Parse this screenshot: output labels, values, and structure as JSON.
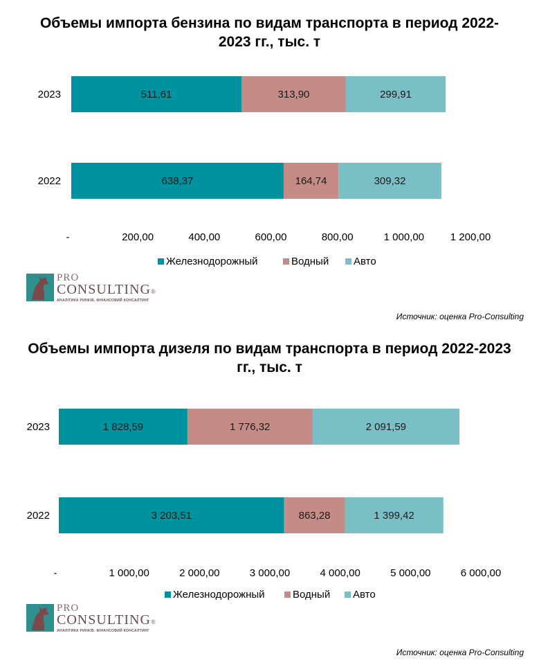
{
  "charts": [
    {
      "title_line1": "Объемы импорта бензина по видам транспорта в период 2022-",
      "title_line2": "2023 гг., тыс. т",
      "source": "Источник: оценка Pro-Consulting"
    },
    {
      "title_line1": "Объемы импорта дизеля по видам транспорта в период 2022-2023",
      "title_line2": "гг., тыс. т",
      "source": "Источник: оценка Pro-Consulting"
    }
  ],
  "logo": {
    "pro": "PRO",
    "consulting": "CONSULTING",
    "registered": "®",
    "tagline": "АНАЛІТИКА РИНКІВ. ФІНАНСОВИЙ КОНСАЛТИНГ"
  },
  "chart_data": [
    {
      "type": "bar",
      "orientation": "horizontal",
      "stacked": true,
      "title": "Объемы импорта бензина по видам транспорта в период 2022-2023 гг., тыс. т",
      "categories": [
        "2023",
        "2022"
      ],
      "series": [
        {
          "name": "Железнодорожный",
          "color": "#00929f",
          "values": [
            511.61,
            638.37
          ],
          "labels": [
            "511,61",
            "638,37"
          ]
        },
        {
          "name": "Водный",
          "color": "#c58b86",
          "values": [
            313.9,
            164.74
          ],
          "labels": [
            "313,90",
            "164,74"
          ]
        },
        {
          "name": "Авто",
          "color": "#7bbfc6",
          "values": [
            299.91,
            309.32
          ],
          "labels": [
            "299,91",
            "309,32"
          ]
        }
      ],
      "xlim": [
        0,
        1200
      ],
      "xticks": [
        0,
        200,
        400,
        600,
        800,
        1000,
        1200
      ],
      "xtick_labels": [
        "-",
        "200,00",
        "400,00",
        "600,00",
        "800,00",
        "1 000,00",
        "1 200,00"
      ],
      "grid": false,
      "legend": "bottom",
      "source": "Источник: оценка Pro-Consulting"
    },
    {
      "type": "bar",
      "orientation": "horizontal",
      "stacked": true,
      "title": "Объемы импорта дизеля по видам транспорта в период 2022-2023 гг., тыс. т",
      "categories": [
        "2023",
        "2022"
      ],
      "series": [
        {
          "name": "Железнодорожный",
          "color": "#00929f",
          "values": [
            1828.59,
            3203.51
          ],
          "labels": [
            "1 828,59",
            "3 203,51"
          ]
        },
        {
          "name": "Водный",
          "color": "#c58b86",
          "values": [
            1776.32,
            863.28
          ],
          "labels": [
            "1 776,32",
            "863,28"
          ]
        },
        {
          "name": "Авто",
          "color": "#7bbfc6",
          "values": [
            2091.59,
            1399.42
          ],
          "labels": [
            "2 091,59",
            "1 399,42"
          ]
        }
      ],
      "xlim": [
        0,
        6000
      ],
      "xticks": [
        0,
        1000,
        2000,
        3000,
        4000,
        5000,
        6000
      ],
      "xtick_labels": [
        "-",
        "1 000,00",
        "2 000,00",
        "3 000,00",
        "4 000,00",
        "5 000,00",
        "6 000,00"
      ],
      "grid": false,
      "legend": "bottom",
      "source": "Источник: оценка Pro-Consulting"
    }
  ]
}
